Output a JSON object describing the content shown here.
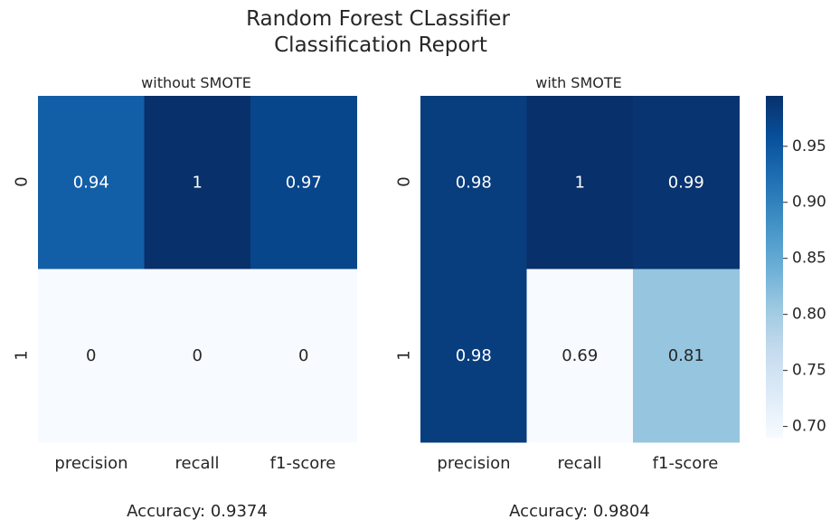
{
  "chart_data": {
    "type": "heatmap",
    "title_lines": [
      "Random Forest CLassifier",
      "Classification Report"
    ],
    "colormap": "Blues",
    "panels": [
      {
        "subtitle": "without SMOTE",
        "row_labels": [
          "0",
          "1"
        ],
        "col_labels": [
          "precision",
          "recall",
          "f1-score"
        ],
        "values": [
          [
            0.94,
            1,
            0.97
          ],
          [
            0,
            0,
            0
          ]
        ],
        "display": [
          [
            "0.94",
            "1",
            "0.97"
          ],
          [
            "0",
            "0",
            "0"
          ]
        ],
        "footer": "Accuracy: 0.9374"
      },
      {
        "subtitle": "with SMOTE",
        "row_labels": [
          "0",
          "1"
        ],
        "col_labels": [
          "precision",
          "recall",
          "f1-score"
        ],
        "values": [
          [
            0.98,
            1,
            0.99
          ],
          [
            0.98,
            0.69,
            0.81
          ]
        ],
        "display": [
          [
            "0.98",
            "1",
            "0.99"
          ],
          [
            "0.98",
            "0.69",
            "0.81"
          ]
        ],
        "footer": "Accuracy: 0.9804"
      }
    ],
    "colorbar": {
      "range": [
        0.69,
        0.995
      ],
      "ticks": [
        0.7,
        0.75,
        0.8,
        0.85,
        0.9,
        0.95
      ],
      "tick_labels": [
        "0.70",
        "0.75",
        "0.80",
        "0.85",
        "0.90",
        "0.95"
      ]
    }
  }
}
